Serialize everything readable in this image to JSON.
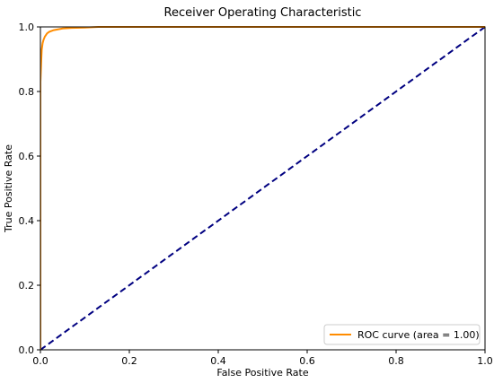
{
  "chart_data": {
    "type": "line",
    "title": "Receiver Operating Characteristic",
    "xlabel": "False Positive Rate",
    "ylabel": "True Positive Rate",
    "xlim": [
      0.0,
      1.0
    ],
    "ylim": [
      0.0,
      1.0
    ],
    "xticks": [
      "0.0",
      "0.2",
      "0.4",
      "0.6",
      "0.8",
      "1.0"
    ],
    "yticks": [
      "0.0",
      "0.2",
      "0.4",
      "0.6",
      "0.8",
      "1.0"
    ],
    "grid": false,
    "legend_position": "lower-right",
    "series": [
      {
        "name": "ROC curve (area = 1.00)",
        "color": "#ff8c00",
        "style": "solid",
        "x": [
          0.0,
          0.0,
          0.002,
          0.003,
          0.005,
          0.007,
          0.01,
          0.015,
          0.02,
          0.03,
          0.05,
          0.07,
          0.1,
          0.13,
          0.2,
          0.4,
          0.6,
          0.8,
          1.0
        ],
        "y": [
          0.0,
          0.83,
          0.9,
          0.93,
          0.95,
          0.96,
          0.97,
          0.98,
          0.985,
          0.99,
          0.995,
          0.997,
          0.998,
          1.0,
          1.0,
          1.0,
          1.0,
          1.0,
          1.0
        ]
      },
      {
        "name": "",
        "color": "#000080",
        "style": "dashed",
        "x": [
          0.0,
          1.0
        ],
        "y": [
          0.0,
          1.0
        ]
      }
    ],
    "legend": [
      {
        "label": "ROC curve (area = 1.00)",
        "color": "#ff8c00"
      }
    ]
  }
}
